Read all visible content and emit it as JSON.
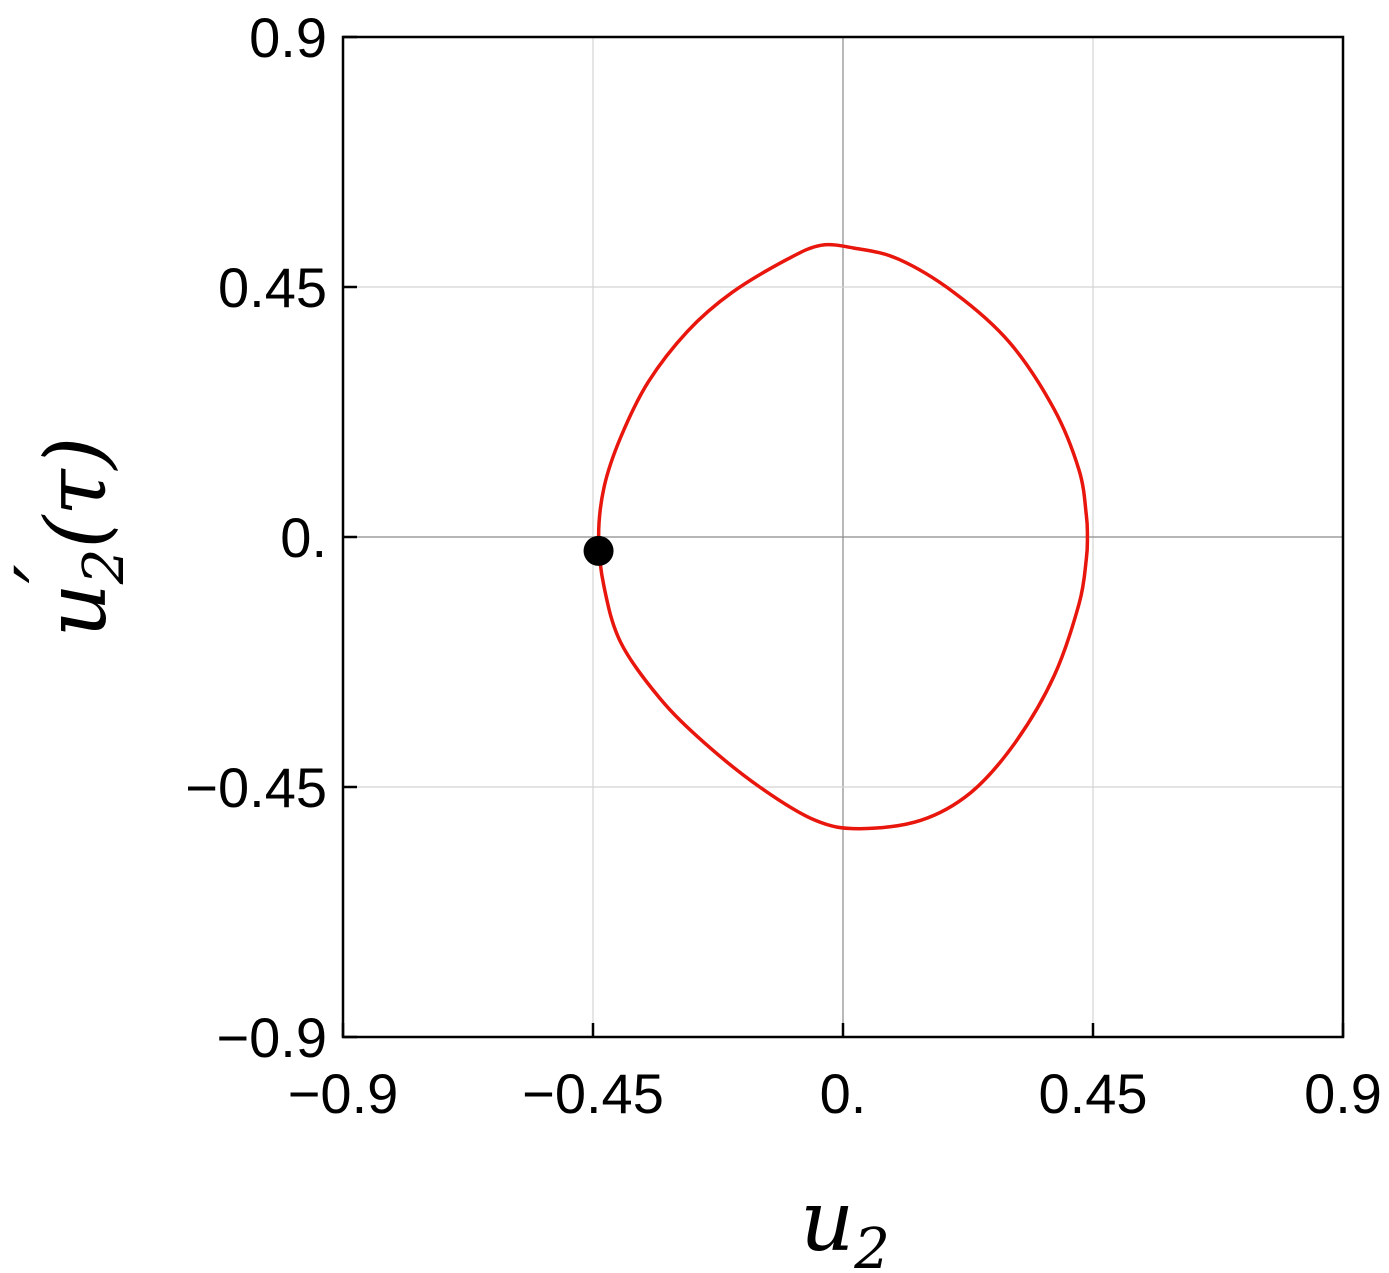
{
  "chart_data": {
    "type": "line",
    "xlabel": "u",
    "xlabel_sub": "2",
    "ylabel": "u",
    "ylabel_prime": "′",
    "ylabel_sub": "2",
    "ylabel_arg": "(τ)",
    "xlim": [
      -0.9,
      0.9
    ],
    "ylim": [
      -0.9,
      0.9
    ],
    "grid": true,
    "xticks": [
      {
        "value": -0.9,
        "label": "−0.9"
      },
      {
        "value": -0.45,
        "label": "−0.45"
      },
      {
        "value": 0,
        "label": "0."
      },
      {
        "value": 0.45,
        "label": "0.45"
      },
      {
        "value": 0.9,
        "label": "0.9"
      }
    ],
    "yticks": [
      {
        "value": -0.9,
        "label": "−0.9"
      },
      {
        "value": -0.45,
        "label": "−0.45"
      },
      {
        "value": 0,
        "label": "0."
      },
      {
        "value": 0.45,
        "label": "0.45"
      },
      {
        "value": 0.9,
        "label": "0.9"
      }
    ],
    "series": [
      {
        "color": "#e8160c",
        "closed": true,
        "points": [
          [
            -0.44,
            0.0
          ],
          [
            -0.43,
            0.09
          ],
          [
            -0.4,
            0.18
          ],
          [
            -0.35,
            0.28
          ],
          [
            -0.28,
            0.37
          ],
          [
            -0.2,
            0.44
          ],
          [
            -0.1,
            0.5
          ],
          [
            -0.04,
            0.525
          ],
          [
            0.02,
            0.52
          ],
          [
            0.1,
            0.5
          ],
          [
            0.2,
            0.44
          ],
          [
            0.3,
            0.35
          ],
          [
            0.38,
            0.23
          ],
          [
            0.425,
            0.12
          ],
          [
            0.438,
            0.04
          ],
          [
            0.44,
            0.0
          ],
          [
            0.438,
            -0.04
          ],
          [
            0.425,
            -0.12
          ],
          [
            0.38,
            -0.25
          ],
          [
            0.31,
            -0.37
          ],
          [
            0.23,
            -0.46
          ],
          [
            0.14,
            -0.51
          ],
          [
            0.03,
            -0.525
          ],
          [
            -0.05,
            -0.51
          ],
          [
            -0.15,
            -0.45
          ],
          [
            -0.25,
            -0.37
          ],
          [
            -0.33,
            -0.29
          ],
          [
            -0.4,
            -0.19
          ],
          [
            -0.43,
            -0.09
          ],
          [
            -0.44,
            0.0
          ]
        ]
      }
    ],
    "marker": {
      "x": -0.44,
      "y": -0.025,
      "color": "#000000"
    }
  }
}
